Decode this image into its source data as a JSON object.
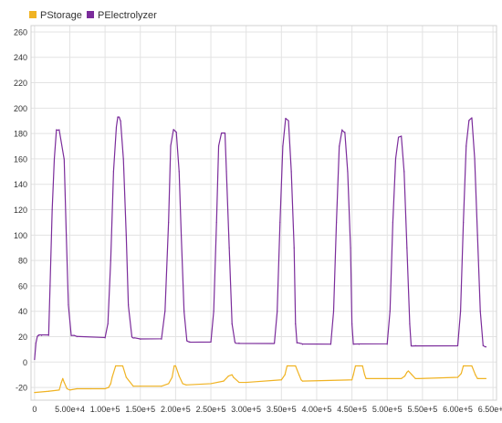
{
  "chart_data": {
    "type": "line",
    "title": "",
    "xlabel": "",
    "ylabel": "",
    "xlim": [
      -5000,
      655000
    ],
    "ylim": [
      -30,
      265
    ],
    "x_ticks": [
      {
        "value": 0,
        "label": "0"
      },
      {
        "value": 50000,
        "label": "5.00e+4"
      },
      {
        "value": 100000,
        "label": "1.00e+5"
      },
      {
        "value": 150000,
        "label": "1.50e+5"
      },
      {
        "value": 200000,
        "label": "2.00e+5"
      },
      {
        "value": 250000,
        "label": "2.50e+5"
      },
      {
        "value": 300000,
        "label": "3.00e+5"
      },
      {
        "value": 350000,
        "label": "3.50e+5"
      },
      {
        "value": 400000,
        "label": "4.00e+5"
      },
      {
        "value": 450000,
        "label": "4.50e+5"
      },
      {
        "value": 500000,
        "label": "5.00e+5"
      },
      {
        "value": 550000,
        "label": "5.50e+5"
      },
      {
        "value": 600000,
        "label": "6.00e+5"
      },
      {
        "value": 650000,
        "label": "6.50e+5"
      }
    ],
    "y_ticks": [
      {
        "value": -20,
        "label": "-20"
      },
      {
        "value": 0,
        "label": "0"
      },
      {
        "value": 20,
        "label": "20"
      },
      {
        "value": 40,
        "label": "40"
      },
      {
        "value": 60,
        "label": "60"
      },
      {
        "value": 80,
        "label": "80"
      },
      {
        "value": 100,
        "label": "100"
      },
      {
        "value": 120,
        "label": "120"
      },
      {
        "value": 140,
        "label": "140"
      },
      {
        "value": 160,
        "label": "160"
      },
      {
        "value": 180,
        "label": "180"
      },
      {
        "value": 200,
        "label": "200"
      },
      {
        "value": 220,
        "label": "220"
      },
      {
        "value": 240,
        "label": "240"
      },
      {
        "value": 260,
        "label": "260"
      }
    ],
    "grid": true,
    "legend": "top-left",
    "series": [
      {
        "name": "PStorage",
        "color": "#f0b323",
        "x": [
          0,
          20000,
          35000,
          38000,
          40000,
          42000,
          46000,
          50000,
          60000,
          80000,
          100000,
          105000,
          108000,
          110000,
          115000,
          125000,
          130000,
          140000,
          150000,
          180000,
          190000,
          195000,
          198000,
          200000,
          205000,
          210000,
          215000,
          250000,
          268000,
          275000,
          280000,
          282000,
          290000,
          300000,
          350000,
          355000,
          358000,
          360000,
          370000,
          375000,
          378000,
          380000,
          450000,
          452000,
          455000,
          460000,
          465000,
          468000,
          470000,
          520000,
          525000,
          528000,
          530000,
          535000,
          540000,
          545000,
          600000,
          605000,
          608000,
          610000,
          620000,
          625000,
          628000,
          630000,
          640000
        ],
        "y": [
          -24,
          -23,
          -22,
          -16,
          -13,
          -16,
          -21,
          -22,
          -21,
          -21,
          -21,
          -20,
          -17,
          -12,
          -3,
          -3,
          -12,
          -19,
          -19,
          -19,
          -17,
          -12,
          -3,
          -3,
          -11,
          -17,
          -18,
          -17,
          -15,
          -11,
          -10,
          -12,
          -16,
          -16,
          -14,
          -10,
          -3,
          -3,
          -3,
          -10,
          -14,
          -15,
          -14,
          -10,
          -3,
          -3,
          -3,
          -10,
          -13,
          -13,
          -11,
          -8,
          -7,
          -10,
          -13,
          -13,
          -12,
          -9,
          -3,
          -3,
          -3,
          -10,
          -13,
          -13,
          -13
        ]
      },
      {
        "name": "PElectrolyzer",
        "color": "#7b2c9b",
        "x": [
          0,
          2000,
          4000,
          6000,
          10000,
          20000,
          22000,
          25000,
          28000,
          31000,
          35000,
          42000,
          45000,
          48000,
          52000,
          56000,
          60000,
          100000,
          104000,
          108000,
          112000,
          116000,
          118000,
          120000,
          122000,
          126000,
          130000,
          133000,
          138000,
          140000,
          142000,
          150000,
          180000,
          185000,
          190000,
          193000,
          197000,
          201000,
          205000,
          208000,
          212000,
          216000,
          220000,
          250000,
          254000,
          258000,
          261000,
          265000,
          270000,
          272000,
          276000,
          280000,
          284000,
          285000,
          290000,
          340000,
          344000,
          348000,
          352000,
          356000,
          360000,
          364000,
          368000,
          370000,
          372000,
          380000,
          420000,
          424000,
          428000,
          432000,
          436000,
          440000,
          444000,
          448000,
          450000,
          452000,
          460000,
          500000,
          504000,
          508000,
          512000,
          516000,
          520000,
          524000,
          528000,
          532000,
          534000,
          540000,
          600000,
          604000,
          608000,
          612000,
          616000,
          620000,
          624000,
          628000,
          632000,
          636000,
          640000
        ],
        "y": [
          2,
          15,
          20,
          21,
          21,
          21,
          60,
          120,
          160,
          183,
          183,
          160,
          100,
          45,
          21,
          21,
          20,
          19,
          30,
          80,
          150,
          185,
          193,
          193,
          190,
          160,
          100,
          45,
          20,
          19,
          19,
          18,
          18,
          40,
          110,
          170,
          183,
          181,
          150,
          100,
          40,
          17,
          16,
          16,
          40,
          110,
          170,
          180,
          180,
          150,
          90,
          30,
          16,
          15,
          15,
          15,
          40,
          110,
          170,
          192,
          190,
          150,
          90,
          30,
          15,
          14,
          14,
          40,
          110,
          170,
          183,
          181,
          150,
          90,
          30,
          14,
          14,
          14,
          40,
          110,
          160,
          177,
          178,
          150,
          90,
          30,
          13,
          13,
          13,
          40,
          110,
          170,
          190,
          192,
          160,
          100,
          40,
          13,
          12
        ]
      }
    ]
  }
}
